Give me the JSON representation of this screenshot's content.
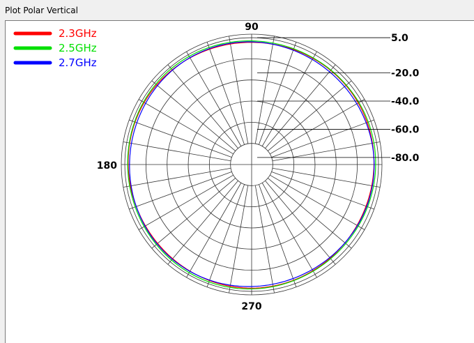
{
  "window": {
    "title": "Plot Polar Vertical"
  },
  "chart_data": {
    "type": "polar",
    "angle_labels": {
      "a90": "90",
      "a180": "180",
      "a270": "270"
    },
    "radial_scale": {
      "ticks": [
        "5.0",
        "-20.0",
        "-40.0",
        "-60.0",
        "-80.0"
      ],
      "tick_values": [
        5,
        -20,
        -40,
        -60,
        -80
      ]
    },
    "angular_grid_step_deg": 10,
    "legend_position": "top-left",
    "series": [
      {
        "name": "2.3GHz",
        "color": "#ff0000",
        "level_db": 2.2,
        "ripple_db": 0.5
      },
      {
        "name": "2.5GHz",
        "color": "#00e000",
        "level_db": 3.0,
        "ripple_db": 0.5
      },
      {
        "name": "2.7GHz",
        "color": "#0000ff",
        "level_db": 1.8,
        "ripple_db": 0.6
      }
    ]
  }
}
